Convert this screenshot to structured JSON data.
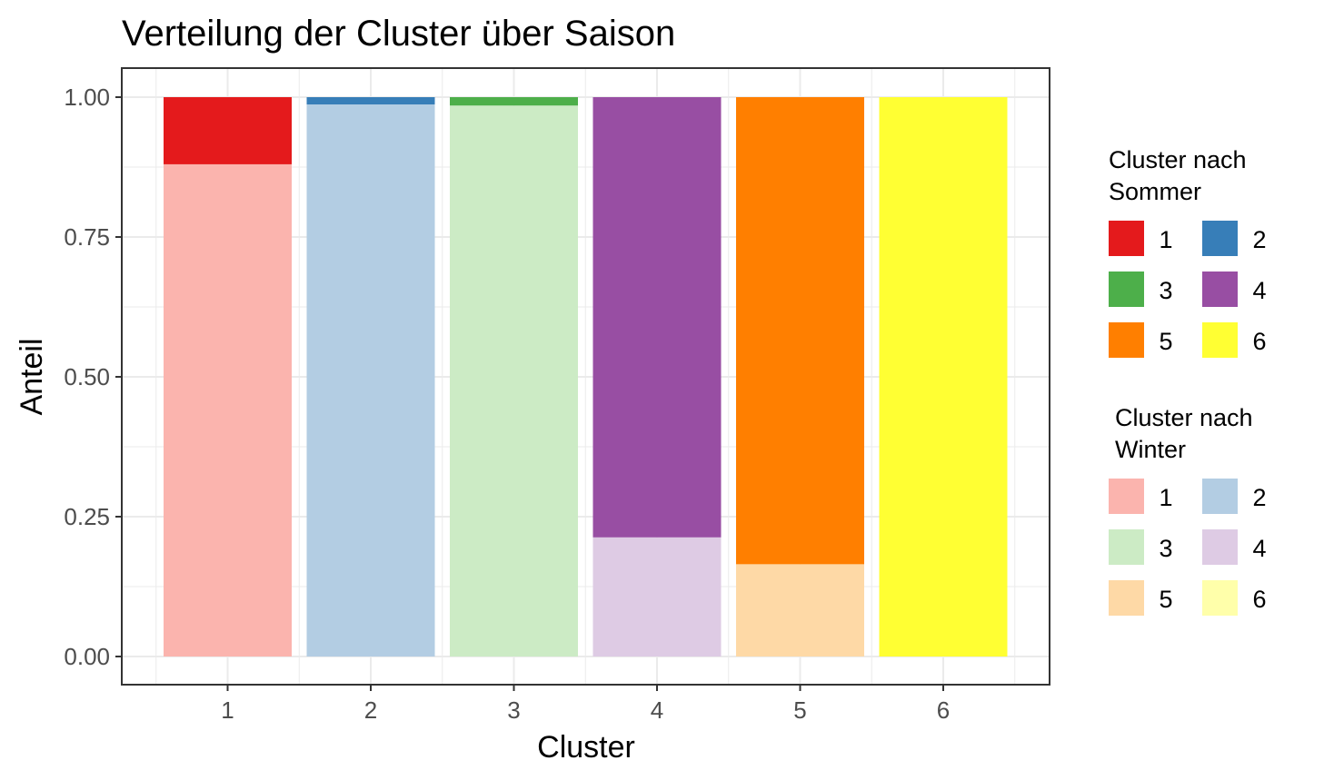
{
  "chart_data": {
    "type": "bar",
    "stacked": true,
    "title": "Verteilung der Cluster über Saison",
    "xlabel": "Cluster",
    "ylabel": "Anteil",
    "categories": [
      "1",
      "2",
      "3",
      "4",
      "5",
      "6"
    ],
    "ylim": [
      0,
      1
    ],
    "yticks": [
      "0.00",
      "0.25",
      "0.50",
      "0.75",
      "1.00"
    ],
    "grid": true,
    "legend_position": "right",
    "series": [
      {
        "group": "Winter",
        "values": [
          0.88,
          0.987,
          0.985,
          0.213,
          0.165,
          0.0
        ]
      },
      {
        "group": "Sommer",
        "values": [
          0.12,
          0.013,
          0.015,
          0.787,
          0.835,
          1.0
        ]
      }
    ],
    "legends": [
      {
        "title_lines": [
          "Cluster nach",
          "Sommer"
        ],
        "items": [
          {
            "label": "1",
            "color": "#E41A1C"
          },
          {
            "label": "2",
            "color": "#377EB8"
          },
          {
            "label": "3",
            "color": "#4DAF4A"
          },
          {
            "label": "4",
            "color": "#984EA3"
          },
          {
            "label": "5",
            "color": "#FF7F00"
          },
          {
            "label": "6",
            "color": "#FFFF33"
          }
        ]
      },
      {
        "title_lines": [
          "Cluster nach",
          "Winter"
        ],
        "items": [
          {
            "label": "1",
            "color": "#FBB4AE"
          },
          {
            "label": "2",
            "color": "#B3CDE3"
          },
          {
            "label": "3",
            "color": "#CCEBC5"
          },
          {
            "label": "4",
            "color": "#DECBE4"
          },
          {
            "label": "5",
            "color": "#FED9A6"
          },
          {
            "label": "6",
            "color": "#FFFFAA"
          }
        ]
      }
    ],
    "colors": {
      "gridline": "#EBEBEB",
      "panel_border": "#333333",
      "tick_label": "#4D4D4D"
    }
  }
}
